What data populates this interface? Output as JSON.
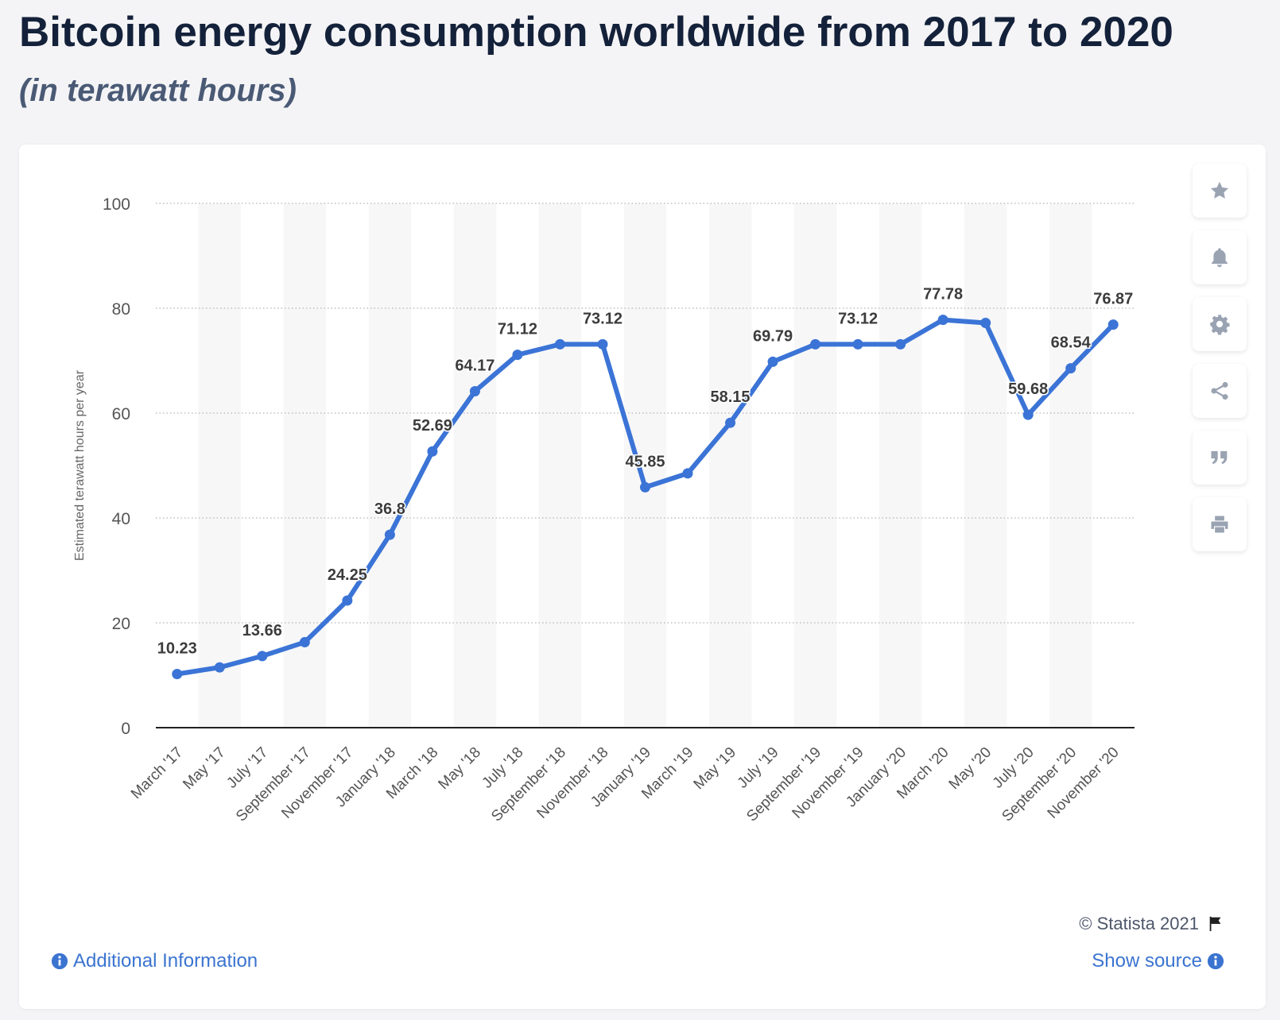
{
  "header": {
    "title": "Bitcoin energy consumption worldwide from 2017 to 2020",
    "subtitle": "(in terawatt hours)"
  },
  "toolbar": {
    "buttons": [
      {
        "icon": "star-icon"
      },
      {
        "icon": "bell-icon"
      },
      {
        "icon": "gear-icon"
      },
      {
        "icon": "share-icon"
      },
      {
        "icon": "quote-icon"
      },
      {
        "icon": "print-icon"
      }
    ]
  },
  "footer": {
    "credit": "© Statista 2021",
    "additional_info": "Additional Information",
    "show_source": "Show source"
  },
  "colors": {
    "line": "#3b74d6",
    "link": "#3b74d0",
    "title": "#14213a"
  },
  "chart_data": {
    "type": "line",
    "title": "Bitcoin energy consumption worldwide from 2017 to 2020",
    "subtitle": "(in terawatt hours)",
    "xlabel": "",
    "ylabel": "Estimated terawatt hours per year",
    "ylim": [
      0,
      100
    ],
    "yticks": [
      0,
      20,
      40,
      60,
      80,
      100
    ],
    "grid": true,
    "categories": [
      "March '17",
      "May '17",
      "July '17",
      "September '17",
      "November '17",
      "January '18",
      "March '18",
      "May '18",
      "July '18",
      "September '18",
      "November '18",
      "January '19",
      "March '19",
      "May '19",
      "July '19",
      "September '19",
      "November '19",
      "January '20",
      "March '20",
      "May '20",
      "July '20",
      "September '20",
      "November '20"
    ],
    "series": [
      {
        "values": [
          10.23,
          11.5,
          13.66,
          16.3,
          24.25,
          36.8,
          52.69,
          64.17,
          71.12,
          73.12,
          73.12,
          45.85,
          48.5,
          58.15,
          69.79,
          73.12,
          73.12,
          73.12,
          77.78,
          77.2,
          59.68,
          68.54,
          76.87
        ],
        "labels": [
          "10.23",
          "",
          "13.66",
          "",
          "24.25",
          "36.8",
          "52.69",
          "64.17",
          "71.12",
          "",
          "73.12",
          "45.85",
          "",
          "58.15",
          "69.79",
          "",
          "73.12",
          "",
          "77.78",
          "",
          "59.68",
          "68.54",
          "76.87"
        ]
      }
    ]
  }
}
